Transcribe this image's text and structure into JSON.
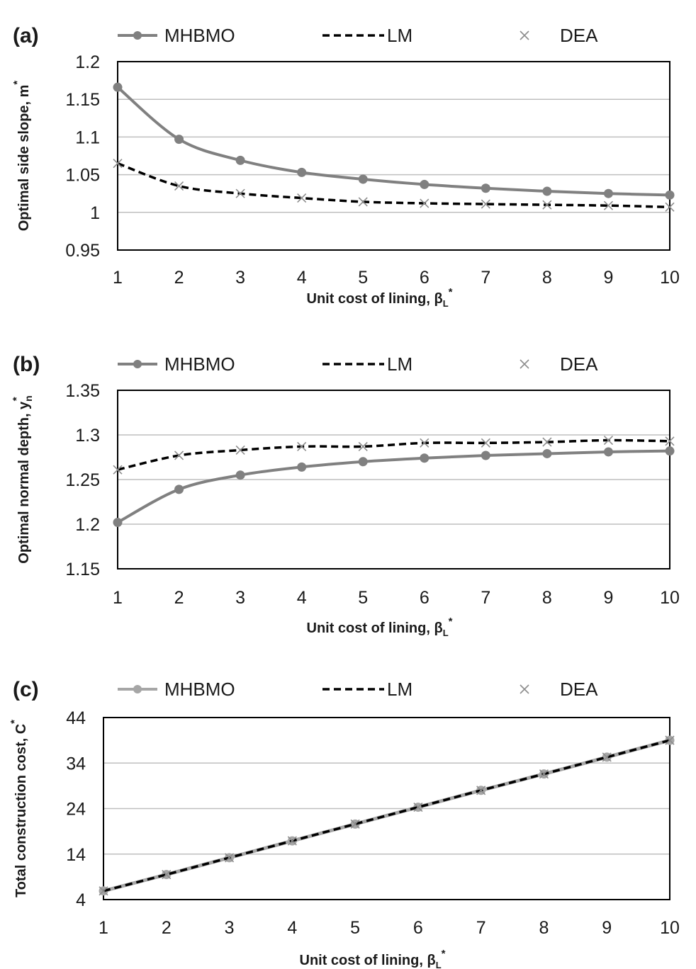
{
  "legend": {
    "mhbmo": "MHBMO",
    "lm": "LM",
    "dea": "DEA"
  },
  "colors": {
    "mhbmo": "#808080",
    "mhbmo_c": "#a6a6a6",
    "lm": "#000000",
    "dea": "#8c8c8c",
    "grid": "#bfbfbf",
    "frame": "#000000"
  },
  "chart_data": [
    {
      "type": "line",
      "panel_label": "(a)",
      "xlabel": "Unit cost of lining, β",
      "xlabel_sub": "L",
      "xlabel_sup": "*",
      "ylabel": "Optimal side slope, m",
      "ylabel_sup": "*",
      "ylabel_sub": "",
      "x": [
        1,
        2,
        3,
        4,
        5,
        6,
        7,
        8,
        9,
        10
      ],
      "x_ticks": [
        "1",
        "2",
        "3",
        "4",
        "5",
        "6",
        "7",
        "8",
        "9",
        "10"
      ],
      "y_ticks": [
        "0.95",
        "1",
        "1.05",
        "1.1",
        "1.15",
        "1.2"
      ],
      "ylim": [
        0.95,
        1.2
      ],
      "grid": true,
      "series": [
        {
          "name": "MHBMO",
          "values": [
            1.166,
            1.097,
            1.069,
            1.053,
            1.044,
            1.037,
            1.032,
            1.028,
            1.025,
            1.023
          ]
        },
        {
          "name": "LM",
          "values": [
            1.065,
            1.035,
            1.025,
            1.019,
            1.014,
            1.012,
            1.011,
            1.01,
            1.009,
            1.007
          ]
        },
        {
          "name": "DEA",
          "values": [
            1.065,
            1.035,
            1.025,
            1.019,
            1.014,
            1.012,
            1.011,
            1.01,
            1.009,
            1.007
          ]
        }
      ]
    },
    {
      "type": "line",
      "panel_label": "(b)",
      "xlabel": "Unit cost of lining, β",
      "xlabel_sub": "L",
      "xlabel_sup": "*",
      "ylabel": "Optimal normal depth, y",
      "ylabel_sup": "*",
      "ylabel_sub": "n",
      "x": [
        1,
        2,
        3,
        4,
        5,
        6,
        7,
        8,
        9,
        10
      ],
      "x_ticks": [
        "1",
        "2",
        "3",
        "4",
        "5",
        "6",
        "7",
        "8",
        "9",
        "10"
      ],
      "y_ticks": [
        "1.15",
        "1.2",
        "1.25",
        "1.3",
        "1.35"
      ],
      "ylim": [
        1.15,
        1.35
      ],
      "grid": true,
      "series": [
        {
          "name": "MHBMO",
          "values": [
            1.202,
            1.239,
            1.255,
            1.264,
            1.27,
            1.274,
            1.277,
            1.279,
            1.281,
            1.282
          ]
        },
        {
          "name": "LM",
          "values": [
            1.261,
            1.277,
            1.283,
            1.287,
            1.287,
            1.291,
            1.291,
            1.292,
            1.294,
            1.293
          ]
        },
        {
          "name": "DEA",
          "values": [
            1.261,
            1.277,
            1.283,
            1.287,
            1.287,
            1.291,
            1.291,
            1.292,
            1.294,
            1.293
          ]
        }
      ]
    },
    {
      "type": "line",
      "panel_label": "(c)",
      "xlabel": "Unit cost of lining, β",
      "xlabel_sub": "L",
      "xlabel_sup": "*",
      "ylabel": "Total construction cost, C",
      "ylabel_sup": "*",
      "ylabel_sub": "",
      "x": [
        1,
        2,
        3,
        4,
        5,
        6,
        7,
        8,
        9,
        10
      ],
      "x_ticks": [
        "1",
        "2",
        "3",
        "4",
        "5",
        "6",
        "7",
        "8",
        "9",
        "10"
      ],
      "y_ticks": [
        "4",
        "14",
        "24",
        "34",
        "44"
      ],
      "ylim": [
        4,
        44
      ],
      "grid": true,
      "series": [
        {
          "name": "MHBMO",
          "values": [
            5.9,
            9.5,
            13.2,
            16.9,
            20.6,
            24.3,
            28.0,
            31.6,
            35.3,
            39.0
          ]
        },
        {
          "name": "LM",
          "values": [
            5.9,
            9.5,
            13.2,
            16.9,
            20.6,
            24.3,
            28.0,
            31.6,
            35.3,
            39.0
          ]
        },
        {
          "name": "DEA",
          "values": [
            5.9,
            9.5,
            13.2,
            16.9,
            20.6,
            24.3,
            28.0,
            31.6,
            35.3,
            39.0
          ]
        }
      ]
    }
  ]
}
